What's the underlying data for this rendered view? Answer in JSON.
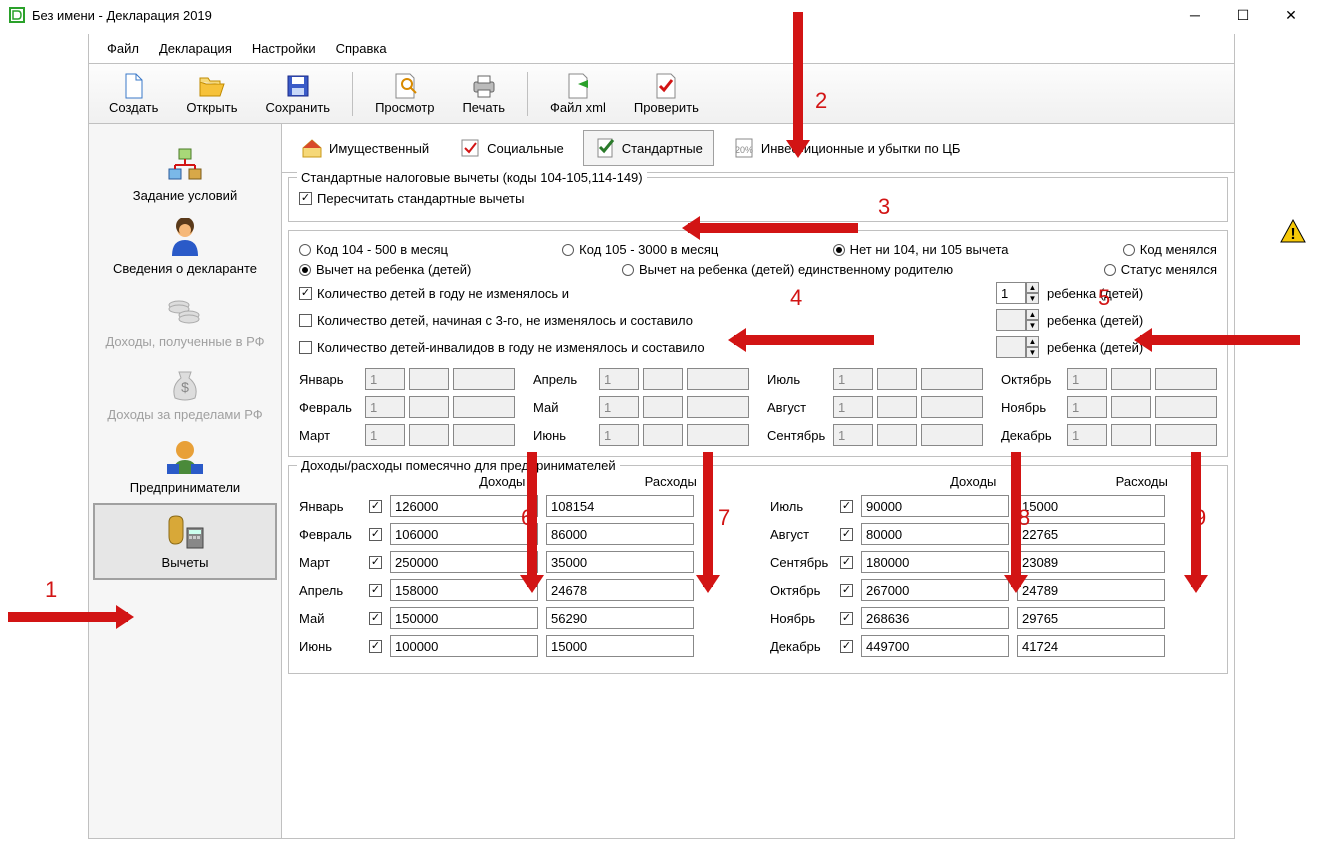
{
  "window": {
    "title": "Без имени - Декларация 2019"
  },
  "menu": {
    "file": "Файл",
    "decl": "Декларация",
    "settings": "Настройки",
    "help": "Справка"
  },
  "toolbar": {
    "create": "Создать",
    "open": "Открыть",
    "save": "Сохранить",
    "preview": "Просмотр",
    "print": "Печать",
    "xml": "Файл xml",
    "check": "Проверить"
  },
  "sidebar": {
    "cond": "Задание условий",
    "declarant": "Сведения о декларанте",
    "income_rf": "Доходы, полученные в РФ",
    "income_abroad": "Доходы за пределами РФ",
    "entrepreneur": "Предприниматели",
    "deductions": "Вычеты"
  },
  "tabs": {
    "property": "Имущественный",
    "social": "Социальные",
    "standard": "Стандартные",
    "invest": "Инвестиционные и убытки по ЦБ"
  },
  "std": {
    "group_title": "Стандартные налоговые вычеты (коды 104-105,114-149)",
    "recalc": "Пересчитать стандартные вычеты",
    "code104": "Код 104 - 500 в месяц",
    "code105": "Код 105 - 3000 в месяц",
    "code_none": "Нет ни 104, ни 105 вычета",
    "code_changed": "Код менялся",
    "child": "Вычет на ребенка (детей)",
    "child_single": "Вычет на ребенка (детей) единственному родителю",
    "status_changed": "Статус менялся",
    "count_nochange": "Количество детей в году не изменялось и",
    "count_from3": "Количество детей, начиная с 3-го, не изменялось и составило",
    "count_disabled": "Количество детей-инвалидов в году не изменялось и составило",
    "children_label": "ребенка (детей)",
    "count_value": "1"
  },
  "months": {
    "jan": "Январь",
    "feb": "Февраль",
    "mar": "Март",
    "apr": "Апрель",
    "may": "Май",
    "jun": "Июнь",
    "jul": "Июль",
    "aug": "Август",
    "sep": "Сентябрь",
    "oct": "Октябрь",
    "nov": "Ноябрь",
    "dec": "Декабрь"
  },
  "mval": {
    "jan": "1",
    "feb": "1",
    "mar": "1",
    "apr": "1",
    "may": "1",
    "jun": "1",
    "jul": "1",
    "aug": "1",
    "sep": "1",
    "oct": "1",
    "nov": "1",
    "dec": "1"
  },
  "inc": {
    "group_title": "Доходы/расходы помесячно для предпринимателей",
    "income_hdr": "Доходы",
    "expense_hdr": "Расходы",
    "rows_left": [
      {
        "m": "jan",
        "inc": "126000",
        "exp": "108154"
      },
      {
        "m": "feb",
        "inc": "106000",
        "exp": "86000"
      },
      {
        "m": "mar",
        "inc": "250000",
        "exp": "35000"
      },
      {
        "m": "apr",
        "inc": "158000",
        "exp": "24678"
      },
      {
        "m": "may",
        "inc": "150000",
        "exp": "56290"
      },
      {
        "m": "jun",
        "inc": "100000",
        "exp": "15000"
      }
    ],
    "rows_right": [
      {
        "m": "jul",
        "inc": "90000",
        "exp": "15000"
      },
      {
        "m": "aug",
        "inc": "80000",
        "exp": "22765"
      },
      {
        "m": "sep",
        "inc": "180000",
        "exp": "23089"
      },
      {
        "m": "oct",
        "inc": "267000",
        "exp": "24789"
      },
      {
        "m": "nov",
        "inc": "268636",
        "exp": "29765"
      },
      {
        "m": "dec",
        "inc": "449700",
        "exp": "41724"
      }
    ]
  },
  "annotations": {
    "1": "1",
    "2": "2",
    "3": "3",
    "4": "4",
    "5": "5",
    "6": "6",
    "7": "7",
    "8": "8",
    "9": "9"
  },
  "colors": {
    "arrow": "#d21414",
    "window_bg": "#ffffff",
    "border": "#c0c0c0"
  }
}
